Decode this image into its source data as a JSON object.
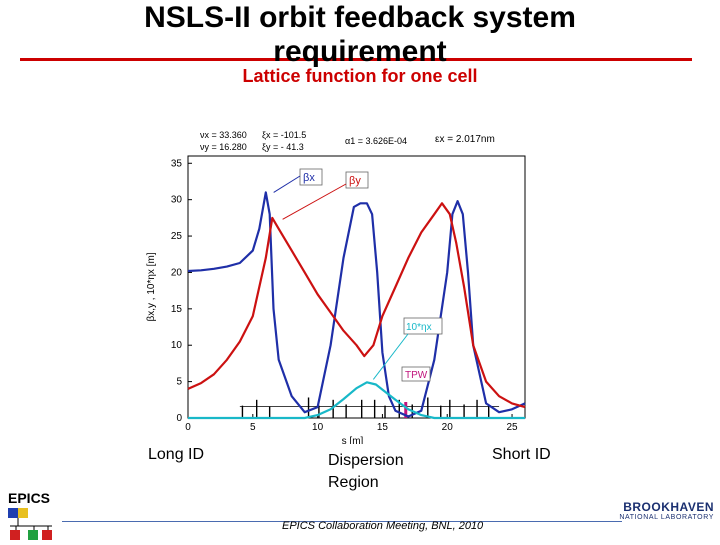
{
  "slide": {
    "title_line1": "NSLS-II orbit feedback system",
    "title_line2": "requirement",
    "subtitle": "Lattice function for one cell",
    "regions": {
      "long_id": "Long ID",
      "dispersion": "Dispersion\nRegion",
      "short_id": "Short ID"
    },
    "footer": "EPICS Collaboration Meeting, BNL, 2010",
    "epics_logo_text": "EPICS",
    "bnl_logo_line1": "BROOKHAVEN",
    "bnl_logo_line2": "NATIONAL LABORATORY",
    "accent_red": "#cc0000"
  },
  "chart_data": {
    "type": "line",
    "xlabel": "s [m]",
    "ylabel": "βx,y , 10*ηx [m]",
    "xlim": [
      0,
      26
    ],
    "ylim": [
      0,
      36
    ],
    "xticks": [
      "0",
      "5",
      "10",
      "15",
      "20",
      "25"
    ],
    "yticks": [
      "0",
      "5",
      "10",
      "15",
      "20",
      "25",
      "30",
      "35"
    ],
    "info": [
      "νx = 33.360",
      "νy = 16.280",
      "ξx = -101.5",
      "ξy = - 41.3",
      "α1 = 3.626E-04",
      "εx = 2.017nm"
    ],
    "series": [
      {
        "name": "βx",
        "color": "#1f2fa8",
        "x": [
          0,
          1,
          2,
          3,
          4,
          5,
          5.5,
          6,
          6.3,
          6.6,
          7,
          8,
          9,
          10,
          11,
          12,
          12.8,
          13.3,
          13.8,
          14.2,
          14.6,
          15,
          15.5,
          16,
          17,
          18,
          19,
          20,
          20.4,
          20.8,
          21.2,
          21.6,
          22,
          23,
          24,
          25,
          26
        ],
        "y": [
          20.2,
          20.3,
          20.5,
          20.8,
          21.3,
          23,
          26,
          31,
          28,
          15,
          8,
          3,
          0.8,
          1.5,
          10,
          22,
          29,
          29.5,
          29.5,
          28,
          20,
          9,
          3,
          1,
          0.2,
          1,
          8,
          20,
          28,
          29.8,
          28,
          20,
          10,
          2,
          0.8,
          1.2,
          2
        ]
      },
      {
        "name": "βy",
        "color": "#cc1111",
        "x": [
          0,
          1,
          2,
          3,
          4,
          5,
          6,
          6.5,
          7,
          8,
          9,
          10,
          11,
          12,
          13,
          13.6,
          14.3,
          15,
          16,
          17,
          18,
          19,
          19.6,
          20.2,
          20.7,
          21.3,
          22,
          23,
          24,
          25,
          26
        ],
        "y": [
          4,
          4.8,
          6,
          8,
          10.5,
          14,
          22,
          27.5,
          26,
          23,
          20,
          17,
          14.5,
          12,
          10,
          8.5,
          10,
          14,
          18,
          22,
          25.5,
          28,
          29.5,
          28,
          24,
          18,
          10,
          5,
          3,
          2,
          1.5
        ]
      },
      {
        "name": "10*ηx",
        "color": "#18b8c8",
        "x": [
          0,
          9,
          10,
          11,
          12,
          13,
          13.8,
          14.5,
          15,
          16,
          17,
          18,
          19,
          26
        ],
        "y": [
          0,
          0,
          0.4,
          1.2,
          2.6,
          4.1,
          4.9,
          4.6,
          3.9,
          2.5,
          1.2,
          0.4,
          0,
          0
        ]
      }
    ],
    "annotations": [
      "βx",
      "βy",
      "10*ηx",
      "TPW"
    ]
  }
}
